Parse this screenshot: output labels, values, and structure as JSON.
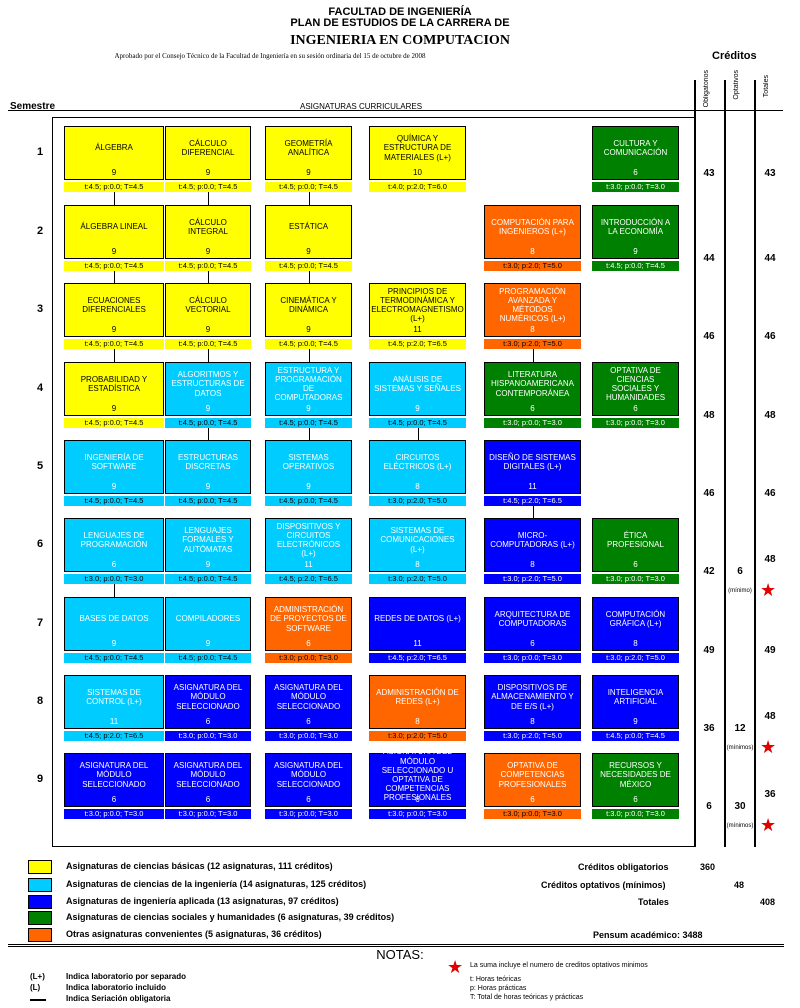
{
  "header": {
    "line1": "FACULTAD DE INGENIERÍA",
    "line2": "PLAN DE ESTUDIOS DE LA CARRERA DE",
    "line3": "INGENIERIA EN COMPUTACION",
    "approved": "Aprobado por el Consejo Técnico de la Facultad de Ingeniería en su sesión ordinaria del 15 de octubre de 2008",
    "creditos": "Créditos",
    "col_obligatorios": "Obligatorios",
    "col_optativos": "Optativos",
    "col_totales": "Totales",
    "semestre": "Semestre",
    "asignaturas": "ASIGNATURAS CURRICULARES"
  },
  "colors": {
    "basicas": "#ffff00",
    "ingenieria": "#00ccff",
    "aplicada": "#0000ff",
    "sociales": "#008000",
    "convenientes": "#ff6600"
  },
  "semesters": [
    {
      "label": "1",
      "oblig": "43",
      "opt": "",
      "total": "43",
      "note": "",
      "star": false,
      "courses": [
        {
          "name": "ÁLGEBRA",
          "credits": "9",
          "hours": "t:4.5; p:0.0; T=4.5",
          "cat": "y",
          "col": 0
        },
        {
          "name": "CÁLCULO DIFERENCIAL",
          "credits": "9",
          "hours": "t:4.5; p:0.0; T=4.5",
          "cat": "y",
          "col": 1
        },
        {
          "name": "GEOMETRÍA ANALÍTICA",
          "credits": "9",
          "hours": "t:4.5; p:0.0; T=4.5",
          "cat": "y",
          "col": 2
        },
        {
          "name": "QUÍMICA Y ESTRUCTURA DE MATERIALES (L+)",
          "credits": "10",
          "hours": "t:4.0; p:2.0; T=6.0",
          "cat": "y",
          "col": 3
        },
        {
          "name": "CULTURA Y COMUNICACIÓN",
          "credits": "6",
          "hours": "t:3.0; p:0.0; T=3.0",
          "cat": "g",
          "col": 5
        }
      ]
    },
    {
      "label": "2",
      "oblig": "44",
      "opt": "",
      "total": "44",
      "note": "",
      "star": false,
      "courses": [
        {
          "name": "ÁLGEBRA LINEAL",
          "credits": "9",
          "hours": "t:4.5; p:0.0; T=4.5",
          "cat": "y",
          "col": 0
        },
        {
          "name": "CÁLCULO INTEGRAL",
          "credits": "9",
          "hours": "t:4.5; p:0.0; T=4.5",
          "cat": "y",
          "col": 1
        },
        {
          "name": "ESTÁTICA",
          "credits": "9",
          "hours": "t:4.5; p:0.0; T=4.5",
          "cat": "y",
          "col": 2
        },
        {
          "name": "COMPUTACIÓN PARA INGENIEROS (L+)",
          "credits": "8",
          "hours": "t:3.0; p:2.0; T=5.0",
          "cat": "o",
          "col": 4
        },
        {
          "name": "INTRODUCCIÓN A LA ECONOMÍA",
          "credits": "9",
          "hours": "t:4.5; p:0.0; T=4.5",
          "cat": "g",
          "col": 5
        }
      ]
    },
    {
      "label": "3",
      "oblig": "46",
      "opt": "",
      "total": "46",
      "note": "",
      "star": false,
      "courses": [
        {
          "name": "ECUACIONES DIFERENCIALES",
          "credits": "9",
          "hours": "t:4.5; p:0.0; T=4.5",
          "cat": "y",
          "col": 0
        },
        {
          "name": "CÁLCULO VECTORIAL",
          "credits": "9",
          "hours": "t:4.5; p:0.0; T=4.5",
          "cat": "y",
          "col": 1
        },
        {
          "name": "CINEMÁTICA Y DINÁMICA",
          "credits": "9",
          "hours": "t:4.5; p:0.0; T=4.5",
          "cat": "y",
          "col": 2
        },
        {
          "name": "PRINCIPIOS DE TERMODINÁMICA Y ELECTROMAGNETISMO (L+)",
          "credits": "11",
          "hours": "t:4.5; p:2.0; T=6.5",
          "cat": "y",
          "col": 3
        },
        {
          "name": "PROGRAMACIÓN AVANZADA Y MÉTODOS NUMÉRICOS (L+)",
          "credits": "8",
          "hours": "t:3.0; p:2.0; T=5.0",
          "cat": "o",
          "col": 4
        }
      ]
    },
    {
      "label": "4",
      "oblig": "48",
      "opt": "",
      "total": "48",
      "note": "",
      "star": false,
      "courses": [
        {
          "name": "PROBABILIDAD Y ESTADÍSTICA",
          "credits": "9",
          "hours": "t:4.5; p:0.0; T=4.5",
          "cat": "y",
          "col": 0
        },
        {
          "name": "ALGORITMOS Y ESTRUCTURAS DE DATOS",
          "credits": "9",
          "hours": "t:4.5; p:0.0; T=4.5",
          "cat": "c",
          "col": 1
        },
        {
          "name": "ESTRUCTURA Y PROGRAMACIÓN DE COMPUTADORAS",
          "credits": "9",
          "hours": "t:4.5; p:0.0; T=4.5",
          "cat": "c",
          "col": 2
        },
        {
          "name": "ANÁLISIS DE SISTEMAS Y SEÑALES",
          "credits": "9",
          "hours": "t:4.5; p:0.0; T=4.5",
          "cat": "c",
          "col": 3
        },
        {
          "name": "LITERATURA HISPANOAMERICANA CONTEMPORÁNEA",
          "credits": "6",
          "hours": "t:3.0; p:0.0; T=3.0",
          "cat": "g",
          "col": 4
        },
        {
          "name": "OPTATIVA DE CIENCIAS SOCIALES Y HUMANIDADES",
          "credits": "6",
          "hours": "t:3.0; p:0.0; T=3.0",
          "cat": "g",
          "col": 5
        }
      ]
    },
    {
      "label": "5",
      "oblig": "46",
      "opt": "",
      "total": "46",
      "note": "",
      "star": false,
      "courses": [
        {
          "name": "INGENIERÍA DE SOFTWARE",
          "credits": "9",
          "hours": "t:4.5; p:0.0; T=4.5",
          "cat": "c",
          "col": 0
        },
        {
          "name": "ESTRUCTURAS DISCRETAS",
          "credits": "9",
          "hours": "t:4.5; p:0.0; T=4.5",
          "cat": "c",
          "col": 1
        },
        {
          "name": "SISTEMAS OPERATIVOS",
          "credits": "9",
          "hours": "t:4.5; p:0.0; T=4.5",
          "cat": "c",
          "col": 2
        },
        {
          "name": "CIRCUITOS ELÉCTRICOS (L+)",
          "credits": "8",
          "hours": "t:3.0; p:2.0; T=5.0",
          "cat": "c",
          "col": 3
        },
        {
          "name": "DISEÑO DE SISTEMAS DIGITALES (L+)",
          "credits": "11",
          "hours": "t:4.5; p:2.0; T=6.5",
          "cat": "b",
          "col": 4
        }
      ]
    },
    {
      "label": "6",
      "oblig": "42",
      "opt": "6",
      "total": "48",
      "note": "(mínimo)",
      "star": true,
      "courses": [
        {
          "name": "LENGUAJES DE PROGRAMACIÓN",
          "credits": "6",
          "hours": "t:3.0; p:0.0; T=3.0",
          "cat": "c",
          "col": 0
        },
        {
          "name": "LENGUAJES FORMALES Y AUTÓMATAS",
          "credits": "9",
          "hours": "t:4.5; p:0.0; T=4.5",
          "cat": "c",
          "col": 1
        },
        {
          "name": "DISPOSITIVOS Y CIRCUITOS ELECTRÓNICOS (L+)",
          "credits": "11",
          "hours": "t:4.5; p:2.0; T=6.5",
          "cat": "c",
          "col": 2
        },
        {
          "name": "SISTEMAS DE COMUNICACIONES (L+)",
          "credits": "8",
          "hours": "t:3.0; p:2.0; T=5.0",
          "cat": "c",
          "col": 3
        },
        {
          "name": "MICRO-COMPUTADORAS (L+)",
          "credits": "8",
          "hours": "t:3.0; p:2.0; T=5.0",
          "cat": "b",
          "col": 4
        },
        {
          "name": "ÉTICA PROFESIONAL",
          "credits": "6",
          "hours": "t:3.0; p:0.0; T=3.0",
          "cat": "g",
          "col": 5
        }
      ]
    },
    {
      "label": "7",
      "oblig": "49",
      "opt": "",
      "total": "49",
      "note": "",
      "star": false,
      "courses": [
        {
          "name": "BASES DE DATOS",
          "credits": "9",
          "hours": "t:4.5; p:0.0; T=4.5",
          "cat": "c",
          "col": 0
        },
        {
          "name": "COMPILADORES",
          "credits": "9",
          "hours": "t:4.5; p:0.0; T=4.5",
          "cat": "c",
          "col": 1
        },
        {
          "name": "ADMINISTRACIÓN DE PROYECTOS DE SOFTWARE",
          "credits": "6",
          "hours": "t:3.0; p:0.0; T=3.0",
          "cat": "o",
          "col": 2
        },
        {
          "name": "REDES DE DATOS (L+)",
          "credits": "11",
          "hours": "t:4.5; p:2.0; T=6.5",
          "cat": "b",
          "col": 3
        },
        {
          "name": "ARQUITECTURA DE COMPUTADORAS",
          "credits": "6",
          "hours": "t:3.0; p:0.0; T=3.0",
          "cat": "b",
          "col": 4
        },
        {
          "name": "COMPUTACIÓN GRÁFICA (L+)",
          "credits": "8",
          "hours": "t:3.0; p:2.0; T=5.0",
          "cat": "b",
          "col": 5
        }
      ]
    },
    {
      "label": "8",
      "oblig": "36",
      "opt": "12",
      "total": "48",
      "note": "(mínimos)",
      "star": true,
      "courses": [
        {
          "name": "SISTEMAS DE CONTROL (L+)",
          "credits": "11",
          "hours": "t:4.5; p:2.0; T=6.5",
          "cat": "c",
          "col": 0
        },
        {
          "name": "ASIGNATURA DEL MÓDULO SELECCIONADO",
          "credits": "6",
          "hours": "t:3.0; p:0.0; T=3.0",
          "cat": "b",
          "col": 1
        },
        {
          "name": "ASIGNATURA DEL MÓDULO SELECCIONADO",
          "credits": "6",
          "hours": "t:3.0; p:0.0; T=3.0",
          "cat": "b",
          "col": 2
        },
        {
          "name": "ADMINISTRACIÓN DE REDES (L+)",
          "credits": "8",
          "hours": "t:3.0; p:2.0; T=5.0",
          "cat": "o",
          "col": 3
        },
        {
          "name": "DISPOSITIVOS DE ALMACENAMIENTO Y DE E/S (L+)",
          "credits": "8",
          "hours": "t:3.0; p:2.0; T=5.0",
          "cat": "b",
          "col": 4
        },
        {
          "name": "INTELIGENCIA ARTIFICIAL",
          "credits": "9",
          "hours": "t:4.5; p:0.0; T=4.5",
          "cat": "b",
          "col": 5
        }
      ]
    },
    {
      "label": "9",
      "oblig": "6",
      "opt": "30",
      "total": "36",
      "note": "(mínimos)",
      "star": true,
      "courses": [
        {
          "name": "ASIGNATURA DEL MÓDULO SELECCIONADO",
          "credits": "6",
          "hours": "t:3.0; p:0.0; T=3.0",
          "cat": "b",
          "col": 0
        },
        {
          "name": "ASIGNATURA DEL MÓDULO SELECCIONADO",
          "credits": "6",
          "hours": "t:3.0; p:0.0; T=3.0",
          "cat": "b",
          "col": 1
        },
        {
          "name": "ASIGNATURA DEL MÓDULO SELECCIONADO",
          "credits": "6",
          "hours": "t:3.0; p:0.0; T=3.0",
          "cat": "b",
          "col": 2
        },
        {
          "name": "ASIGNATURA DEL MÓDULO SELECCIONADO U OPTATIVA DE COMPETENCIAS PROFESIONALES",
          "credits": "6",
          "hours": "t:3.0; p:0.0; T=3.0",
          "cat": "b",
          "col": 3
        },
        {
          "name": "OPTATIVA DE COMPETENCIAS PROFESIONALES",
          "credits": "6",
          "hours": "t:3.0; p:0.0; T=3.0",
          "cat": "o",
          "col": 4
        },
        {
          "name": "RECURSOS Y NECESIDADES DE MÉXICO",
          "credits": "6",
          "hours": "t:3.0; p:0.0; T=3.0",
          "cat": "g",
          "col": 5
        }
      ]
    }
  ],
  "legend": [
    {
      "cat": "y",
      "text": "Asignaturas de ciencias básicas (12 asignaturas, 111 créditos)"
    },
    {
      "cat": "c",
      "text": "Asignaturas de ciencias de la ingeniería (14 asignaturas, 125 créditos)"
    },
    {
      "cat": "b",
      "text": "Asignaturas de ingeniería aplicada (13 asignaturas, 97 créditos)"
    },
    {
      "cat": "g",
      "text": "Asignaturas de ciencias sociales y humanidades (6 asignaturas, 39 créditos)"
    },
    {
      "cat": "o",
      "text": "Otras asignaturas convenientes (5 asignaturas, 36 créditos)"
    }
  ],
  "summary": {
    "oblig_label": "Créditos obligatorios",
    "oblig_value": "360",
    "opt_label": "Créditos optativos (mínimos)",
    "opt_value": "48",
    "tot_label": "Totales",
    "tot_value": "408",
    "pensum": "Pensum académico: 3488"
  },
  "notes": {
    "title": "NOTAS:",
    "lab_sep_sym": "(L+)",
    "lab_sep_txt": "Indica laboratorio por separado",
    "lab_inc_sym": "(L)",
    "lab_inc_txt": "Indica laboratorio incluido",
    "seriation_txt": "Indica Seriación obligatoria",
    "star_txt": "La suma incluye el numero de creditos optativos minimos",
    "t_txt": "t: Horas teóricas",
    "p_txt": "p: Horas prácticas",
    "T_txt": "T: Total de horas teóricas y prácticas"
  }
}
